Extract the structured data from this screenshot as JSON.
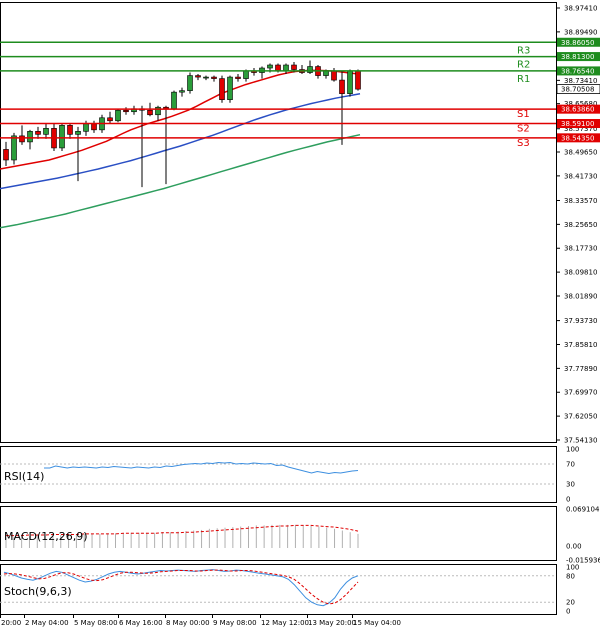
{
  "chart_data": {
    "type": "candlestick",
    "main": {
      "y_ticks": [
        "38.97410",
        "38.89490",
        "38.81300",
        "38.73410",
        "38.65680",
        "38.57370",
        "38.49650",
        "38.41730",
        "38.33570",
        "38.25650",
        "38.17730",
        "38.09810",
        "38.01890",
        "37.93730",
        "37.85810",
        "37.77890",
        "37.69970",
        "37.62050",
        "37.54130"
      ],
      "ylim": [
        37.5413,
        38.9741
      ],
      "levels": [
        {
          "name": "R3",
          "value": 38.8605,
          "label": "38.86050",
          "color": "#1e8c1e"
        },
        {
          "name": "R2",
          "value": 38.813,
          "label": "38.81300",
          "color": "#1e8c1e"
        },
        {
          "name": "R1",
          "value": 38.7654,
          "label": "38.76540",
          "color": "#1e8c1e"
        },
        {
          "name": "S1",
          "value": 38.6386,
          "label": "38.63860",
          "color": "#e00000"
        },
        {
          "name": "S2",
          "value": 38.591,
          "label": "38.59100",
          "color": "#e00000"
        },
        {
          "name": "S3",
          "value": 38.5435,
          "label": "38.54350",
          "color": "#e00000"
        }
      ],
      "current_price": {
        "value": 38.7051,
        "label": "38.70508"
      },
      "candles": [
        {
          "o": 38.505,
          "h": 38.53,
          "l": 38.45,
          "c": 38.47
        },
        {
          "o": 38.47,
          "h": 38.56,
          "l": 38.455,
          "c": 38.55
        },
        {
          "o": 38.55,
          "h": 38.585,
          "l": 38.52,
          "c": 38.53
        },
        {
          "o": 38.53,
          "h": 38.57,
          "l": 38.505,
          "c": 38.565
        },
        {
          "o": 38.565,
          "h": 38.58,
          "l": 38.54,
          "c": 38.555
        },
        {
          "o": 38.555,
          "h": 38.59,
          "l": 38.54,
          "c": 38.575
        },
        {
          "o": 38.575,
          "h": 38.59,
          "l": 38.5,
          "c": 38.51
        },
        {
          "o": 38.51,
          "h": 38.59,
          "l": 38.5,
          "c": 38.585
        },
        {
          "o": 38.585,
          "h": 38.59,
          "l": 38.54,
          "c": 38.555
        },
        {
          "o": 38.555,
          "h": 38.58,
          "l": 38.4,
          "c": 38.565
        },
        {
          "o": 38.565,
          "h": 38.6,
          "l": 38.55,
          "c": 38.59
        },
        {
          "o": 38.59,
          "h": 38.6,
          "l": 38.56,
          "c": 38.57
        },
        {
          "o": 38.57,
          "h": 38.62,
          "l": 38.56,
          "c": 38.61
        },
        {
          "o": 38.61,
          "h": 38.63,
          "l": 38.59,
          "c": 38.6
        },
        {
          "o": 38.6,
          "h": 38.64,
          "l": 38.595,
          "c": 38.635
        },
        {
          "o": 38.635,
          "h": 38.645,
          "l": 38.62,
          "c": 38.63
        },
        {
          "o": 38.63,
          "h": 38.65,
          "l": 38.62,
          "c": 38.64
        },
        {
          "o": 38.64,
          "h": 38.65,
          "l": 38.38,
          "c": 38.635
        },
        {
          "o": 38.635,
          "h": 38.66,
          "l": 38.615,
          "c": 38.62
        },
        {
          "o": 38.62,
          "h": 38.65,
          "l": 38.6,
          "c": 38.645
        },
        {
          "o": 38.645,
          "h": 38.65,
          "l": 38.39,
          "c": 38.64
        },
        {
          "o": 38.64,
          "h": 38.7,
          "l": 38.635,
          "c": 38.695
        },
        {
          "o": 38.695,
          "h": 38.71,
          "l": 38.68,
          "c": 38.7
        },
        {
          "o": 38.7,
          "h": 38.76,
          "l": 38.69,
          "c": 38.75
        },
        {
          "o": 38.75,
          "h": 38.755,
          "l": 38.735,
          "c": 38.745
        },
        {
          "o": 38.745,
          "h": 38.75,
          "l": 38.735,
          "c": 38.745
        },
        {
          "o": 38.745,
          "h": 38.75,
          "l": 38.73,
          "c": 38.74
        },
        {
          "o": 38.74,
          "h": 38.75,
          "l": 38.66,
          "c": 38.67
        },
        {
          "o": 38.67,
          "h": 38.75,
          "l": 38.66,
          "c": 38.745
        },
        {
          "o": 38.745,
          "h": 38.755,
          "l": 38.73,
          "c": 38.74
        },
        {
          "o": 38.74,
          "h": 38.77,
          "l": 38.73,
          "c": 38.765
        },
        {
          "o": 38.765,
          "h": 38.775,
          "l": 38.75,
          "c": 38.76
        },
        {
          "o": 38.76,
          "h": 38.78,
          "l": 38.74,
          "c": 38.775
        },
        {
          "o": 38.775,
          "h": 38.79,
          "l": 38.76,
          "c": 38.785
        },
        {
          "o": 38.785,
          "h": 38.79,
          "l": 38.76,
          "c": 38.765
        },
        {
          "o": 38.765,
          "h": 38.79,
          "l": 38.755,
          "c": 38.785
        },
        {
          "o": 38.785,
          "h": 38.795,
          "l": 38.76,
          "c": 38.77
        },
        {
          "o": 38.77,
          "h": 38.785,
          "l": 38.755,
          "c": 38.76
        },
        {
          "o": 38.76,
          "h": 38.8,
          "l": 38.755,
          "c": 38.78
        },
        {
          "o": 38.78,
          "h": 38.785,
          "l": 38.74,
          "c": 38.75
        },
        {
          "o": 38.75,
          "h": 38.77,
          "l": 38.74,
          "c": 38.765
        },
        {
          "o": 38.765,
          "h": 38.775,
          "l": 38.73,
          "c": 38.735
        },
        {
          "o": 38.735,
          "h": 38.765,
          "l": 38.52,
          "c": 38.69
        },
        {
          "o": 38.69,
          "h": 38.77,
          "l": 38.68,
          "c": 38.765
        },
        {
          "o": 38.765,
          "h": 38.77,
          "l": 38.7,
          "c": 38.705
        }
      ],
      "ma_red": [
        38.44,
        38.445,
        38.45,
        38.455,
        38.46,
        38.465,
        38.47,
        38.478,
        38.486,
        38.494,
        38.502,
        38.512,
        38.522,
        38.532,
        38.545,
        38.558,
        38.57,
        38.58,
        38.59,
        38.598,
        38.606,
        38.615,
        38.625,
        38.635,
        38.648,
        38.662,
        38.676,
        38.69,
        38.7,
        38.71,
        38.72,
        38.728,
        38.736,
        38.744,
        38.752,
        38.758,
        38.763,
        38.766,
        38.767,
        38.767,
        38.766,
        38.764,
        38.761,
        38.758,
        38.755
      ],
      "ma_blue": [
        38.375,
        38.38,
        38.385,
        38.39,
        38.395,
        38.4,
        38.405,
        38.41,
        38.416,
        38.422,
        38.428,
        38.434,
        38.44,
        38.447,
        38.454,
        38.461,
        38.468,
        38.476,
        38.484,
        38.492,
        38.5,
        38.508,
        38.516,
        38.525,
        38.534,
        38.543,
        38.552,
        38.562,
        38.572,
        38.582,
        38.592,
        38.602,
        38.611,
        38.62,
        38.628,
        38.636,
        38.643,
        38.65,
        38.657,
        38.663,
        38.669,
        38.675,
        38.68,
        38.685,
        38.69
      ],
      "ma_green": [
        38.245,
        38.25,
        38.255,
        38.261,
        38.267,
        38.273,
        38.279,
        38.285,
        38.291,
        38.298,
        38.305,
        38.312,
        38.319,
        38.326,
        38.333,
        38.34,
        38.347,
        38.354,
        38.361,
        38.368,
        38.375,
        38.383,
        38.391,
        38.399,
        38.407,
        38.415,
        38.423,
        38.431,
        38.439,
        38.447,
        38.455,
        38.463,
        38.471,
        38.479,
        38.487,
        38.495,
        38.502,
        38.509,
        38.516,
        38.523,
        38.53,
        38.536,
        38.542,
        38.548,
        38.554
      ]
    },
    "x_ticks": [
      "20:00",
      "2 May 04:00",
      "5 May 08:00",
      "6 May 16:00",
      "8 May 00:00",
      "9 May 08:00",
      "12 May 12:00",
      "13 May 20:00",
      "15 May 04:00"
    ],
    "rsi": {
      "title": "RSI(14)",
      "y_ticks": [
        "100",
        "70",
        "30",
        "0"
      ],
      "ylim": [
        0,
        100
      ],
      "levels": [
        70,
        30
      ],
      "values": [
        62,
        62,
        66,
        64,
        62,
        64,
        63,
        64,
        63,
        62,
        64,
        63,
        65,
        64,
        63,
        62,
        64,
        63,
        62,
        64,
        63,
        66,
        65,
        67,
        69,
        70,
        71,
        70,
        72,
        71,
        73,
        72,
        73,
        70,
        71,
        70,
        72,
        71,
        70,
        71,
        67,
        68,
        64,
        61,
        58,
        55,
        52,
        55,
        53,
        51,
        53,
        52,
        54,
        56,
        57
      ]
    },
    "macd": {
      "title": "MACD(12,26,9)",
      "y_ticks": [
        "0.069104",
        "0.00",
        "-0.015936"
      ],
      "ylim": [
        -0.015936,
        0.069104
      ],
      "histogram": [
        0.018,
        0.019,
        0.02,
        0.021,
        0.022,
        0.022,
        0.023,
        0.023,
        0.024,
        0.024,
        0.025,
        0.025,
        0.025,
        0.026,
        0.026,
        0.026,
        0.027,
        0.027,
        0.027,
        0.027,
        0.028,
        0.028,
        0.029,
        0.03,
        0.031,
        0.032,
        0.034,
        0.035,
        0.036,
        0.037,
        0.038,
        0.039,
        0.04,
        0.04,
        0.041,
        0.041,
        0.041,
        0.041,
        0.04,
        0.039,
        0.038,
        0.036,
        0.034,
        0.031,
        0.028,
        0.025
      ],
      "signal": [
        0.022,
        0.022,
        0.022,
        0.023,
        0.023,
        0.023,
        0.024,
        0.024,
        0.024,
        0.024,
        0.025,
        0.025,
        0.025,
        0.025,
        0.025,
        0.026,
        0.026,
        0.026,
        0.026,
        0.026,
        0.027,
        0.027,
        0.027,
        0.028,
        0.028,
        0.029,
        0.03,
        0.031,
        0.032,
        0.033,
        0.034,
        0.035,
        0.036,
        0.037,
        0.038,
        0.039,
        0.039,
        0.04,
        0.04,
        0.04,
        0.039,
        0.038,
        0.037,
        0.035,
        0.033,
        0.03
      ]
    },
    "stoch": {
      "title": "Stoch(9,6,3)",
      "y_ticks": [
        "100",
        "80",
        "20",
        "0"
      ],
      "ylim": [
        0,
        100
      ],
      "levels": [
        80,
        20
      ],
      "k": [
        88,
        85,
        80,
        75,
        72,
        70,
        74,
        80,
        86,
        90,
        88,
        82,
        76,
        70,
        66,
        68,
        72,
        78,
        84,
        88,
        90,
        88,
        86,
        84,
        86,
        88,
        90,
        92,
        91,
        92,
        93,
        92,
        91,
        90,
        92,
        93,
        94,
        92,
        90,
        91,
        93,
        92,
        90,
        88,
        86,
        84,
        82,
        80,
        78,
        72,
        60,
        45,
        30,
        20,
        14,
        12,
        18,
        30,
        50,
        65,
        75,
        80
      ],
      "d": [
        84,
        85,
        84,
        82,
        79,
        76,
        73,
        74,
        78,
        83,
        87,
        87,
        84,
        79,
        74,
        70,
        69,
        71,
        76,
        81,
        86,
        88,
        88,
        87,
        86,
        86,
        87,
        89,
        90,
        91,
        92,
        92,
        92,
        91,
        91,
        92,
        93,
        93,
        92,
        91,
        91,
        92,
        92,
        91,
        89,
        87,
        85,
        83,
        81,
        78,
        72,
        62,
        50,
        38,
        28,
        20,
        16,
        18,
        26,
        38,
        52,
        66
      ]
    }
  }
}
